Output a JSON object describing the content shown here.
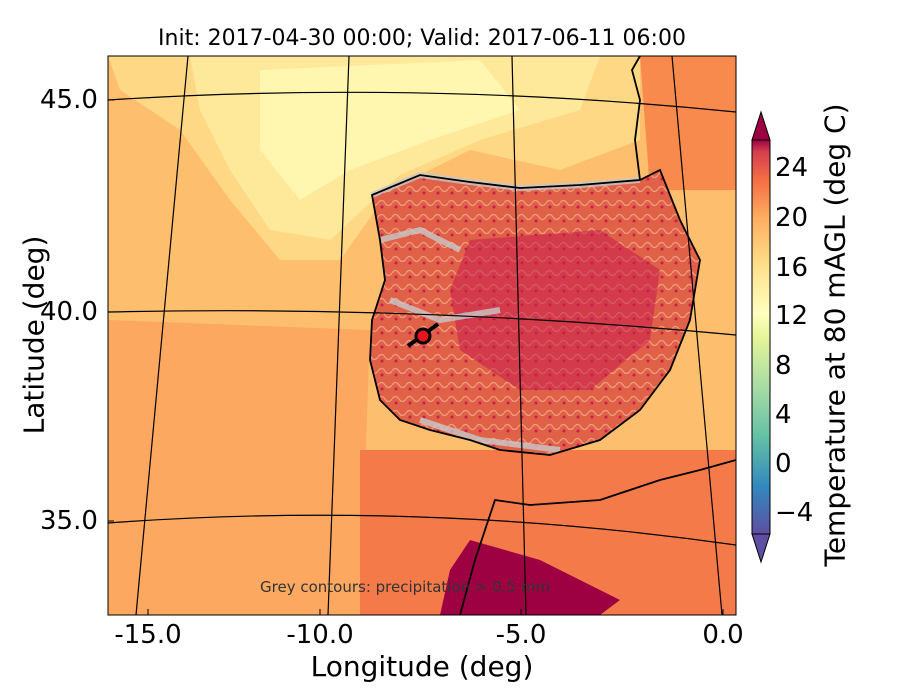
{
  "map": {
    "title": "Init: 2017-04-30 00:00; Valid: 2017-06-11 06:00",
    "xlabel": "Longitude (deg)",
    "ylabel": "Latitude (deg)",
    "x_ticks": [
      "-15.0",
      "-10.0",
      "-5.0",
      "0.0"
    ],
    "y_ticks": [
      "45.0",
      "40.0",
      "35.0"
    ],
    "annotation": "Grey contours: precipitation > 0.5 mm",
    "colorbar": {
      "label": "Temperature at 80 mAGL (deg C)",
      "ticks": [
        "24",
        "20",
        "16",
        "12",
        "8",
        "4",
        "0",
        "−4"
      ],
      "range": [
        -6,
        26
      ]
    },
    "marker": {
      "lon": -7.7,
      "lat": 39.4,
      "color": "#e8141c"
    }
  }
}
